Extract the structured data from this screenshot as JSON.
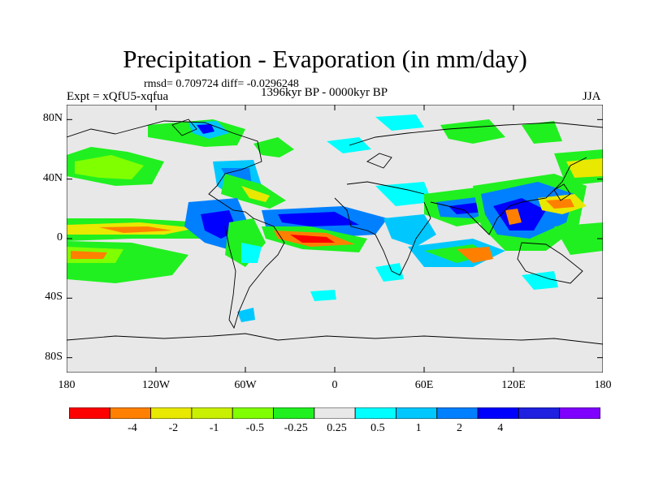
{
  "title": "Precipitation - Evaporation (in mm/day)",
  "stats": "rmsd= 0.709724 diff= -0.0296248",
  "period": "1396kyr BP - 0000kyr BP",
  "experiment": "Expt = xQfU5-xqfua",
  "season": "JJA",
  "map": {
    "projection": "cylindrical-equidistant",
    "lon_range": [
      -180,
      180
    ],
    "lat_range": [
      -90,
      90
    ],
    "lat_ticks": [
      {
        "value": 80,
        "label": "80N"
      },
      {
        "value": 40,
        "label": "40N"
      },
      {
        "value": 0,
        "label": "0"
      },
      {
        "value": -40,
        "label": "40S"
      },
      {
        "value": -80,
        "label": "80S"
      }
    ],
    "lon_ticks": [
      {
        "value": -180,
        "label": "180"
      },
      {
        "value": -120,
        "label": "120W"
      },
      {
        "value": -60,
        "label": "60W"
      },
      {
        "value": 0,
        "label": "0"
      },
      {
        "value": 60,
        "label": "60E"
      },
      {
        "value": 120,
        "label": "120E"
      },
      {
        "value": 180,
        "label": "180"
      }
    ],
    "background_color": "#e8e8e8"
  },
  "colorbar": {
    "colors": [
      "#ff0000",
      "#ff8000",
      "#e8e800",
      "#c8f000",
      "#80ff00",
      "#20f020",
      "#e8e8e8",
      "#00ffff",
      "#00c8ff",
      "#0080ff",
      "#0000ff",
      "#2020e0",
      "#8000ff"
    ],
    "labels": [
      "-4",
      "-2",
      "-1",
      "-0.5",
      "-0.25",
      "0.25",
      "0.5",
      "1",
      "2",
      "4"
    ]
  }
}
